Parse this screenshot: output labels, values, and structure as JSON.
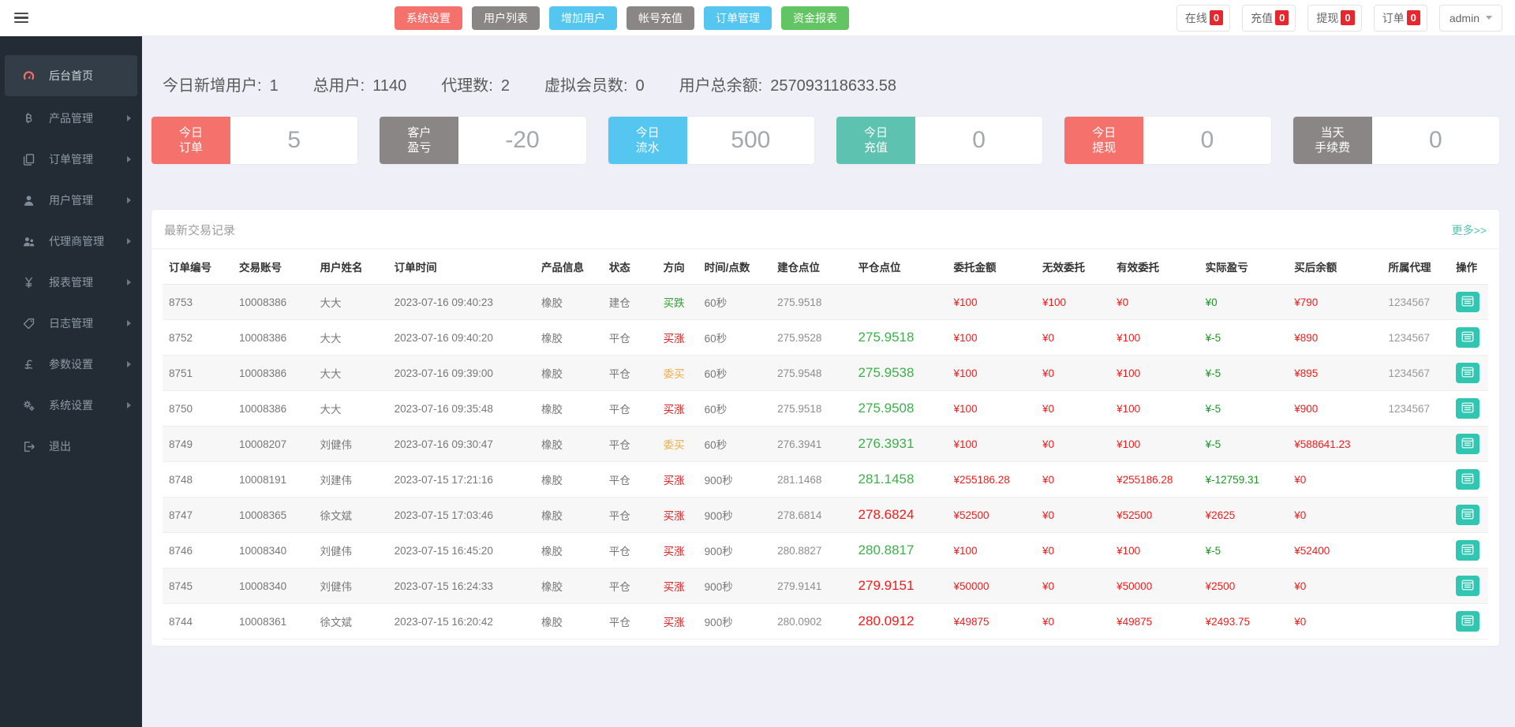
{
  "topbar": {
    "actions": [
      {
        "key": "system-settings",
        "label": "系统设置",
        "color": "red"
      },
      {
        "key": "user-list",
        "label": "用户列表",
        "color": "gray"
      },
      {
        "key": "add-user",
        "label": "增加用户",
        "color": "blue"
      },
      {
        "key": "account-recharge",
        "label": "帐号充值",
        "color": "gray"
      },
      {
        "key": "order-manage",
        "label": "订单管理",
        "color": "blue"
      },
      {
        "key": "fund-report",
        "label": "资金报表",
        "color": "green"
      }
    ],
    "status": [
      {
        "key": "online",
        "label": "在线",
        "count": "0"
      },
      {
        "key": "recharge",
        "label": "充值",
        "count": "0"
      },
      {
        "key": "withdraw",
        "label": "提现",
        "count": "0"
      },
      {
        "key": "orders",
        "label": "订单",
        "count": "0"
      }
    ],
    "user": {
      "name": "admin"
    }
  },
  "sidebar": {
    "items": [
      {
        "key": "home",
        "label": "后台首页",
        "icon": "dashboard-icon",
        "active": true,
        "expandable": false
      },
      {
        "key": "products",
        "label": "产品管理",
        "icon": "bitcoin-icon",
        "active": false,
        "expandable": true
      },
      {
        "key": "orders",
        "label": "订单管理",
        "icon": "orders-icon",
        "active": false,
        "expandable": true
      },
      {
        "key": "users",
        "label": "用户管理",
        "icon": "user-icon",
        "active": false,
        "expandable": true
      },
      {
        "key": "agents",
        "label": "代理商管理",
        "icon": "agents-icon",
        "active": false,
        "expandable": true
      },
      {
        "key": "reports",
        "label": "报表管理",
        "icon": "yen-icon",
        "active": false,
        "expandable": true
      },
      {
        "key": "logs",
        "label": "日志管理",
        "icon": "logs-icon",
        "active": false,
        "expandable": true
      },
      {
        "key": "params",
        "label": "参数设置",
        "icon": "pound-icon",
        "active": false,
        "expandable": true
      },
      {
        "key": "system",
        "label": "系统设置",
        "icon": "gears-icon",
        "active": false,
        "expandable": true
      },
      {
        "key": "logout",
        "label": "退出",
        "icon": "signout-icon",
        "active": false,
        "expandable": false
      }
    ]
  },
  "overview": {
    "stats": [
      {
        "label": "今日新增用户:",
        "value": "1"
      },
      {
        "label": "总用户:",
        "value": "1140"
      },
      {
        "label": "代理数:",
        "value": "2"
      },
      {
        "label": "虚拟会员数:",
        "value": "0"
      },
      {
        "label": "用户总余额:",
        "value": "257093118633.58"
      }
    ],
    "cards": [
      {
        "key": "today-orders",
        "line1": "今日",
        "line2": "订单",
        "value": "5",
        "color": "red"
      },
      {
        "key": "customer-pnl",
        "line1": "客户",
        "line2": "盈亏",
        "value": "-20",
        "color": "gray"
      },
      {
        "key": "today-flow",
        "line1": "今日",
        "line2": "流水",
        "value": "500",
        "color": "blue"
      },
      {
        "key": "today-recharge",
        "line1": "今日",
        "line2": "充值",
        "value": "0",
        "color": "teal"
      },
      {
        "key": "today-withdraw",
        "line1": "今日",
        "line2": "提现",
        "value": "0",
        "color": "red"
      },
      {
        "key": "today-fee",
        "line1": "当天",
        "line2": "手续费",
        "value": "0",
        "color": "gray"
      }
    ]
  },
  "panel": {
    "title": "最新交易记录",
    "more": "更多>>",
    "table": {
      "columns": [
        "订单编号",
        "交易账号",
        "用户姓名",
        "订单时间",
        "产品信息",
        "状态",
        "方向",
        "时间/点数",
        "建仓点位",
        "平仓点位",
        "委托金额",
        "无效委托",
        "有效委托",
        "实际盈亏",
        "买后余额",
        "所属代理",
        "操作"
      ],
      "rows": [
        {
          "id": "8753",
          "account": "10008386",
          "name": "大大",
          "time": "2023-07-16 09:40:23",
          "product": "橡胶",
          "status": "建仓",
          "direction": "买跌",
          "direction_color": "green",
          "period": "60秒",
          "open": "275.9518",
          "close": "",
          "close_color": "green",
          "amount": "¥100",
          "invalid": "¥100",
          "valid": "¥0",
          "profit": "¥0",
          "profit_color": "green",
          "balance": "¥790",
          "agent": "1234567"
        },
        {
          "id": "8752",
          "account": "10008386",
          "name": "大大",
          "time": "2023-07-16 09:40:20",
          "product": "橡胶",
          "status": "平仓",
          "direction": "买涨",
          "direction_color": "red",
          "period": "60秒",
          "open": "275.9528",
          "close": "275.9518",
          "close_color": "green",
          "amount": "¥100",
          "invalid": "¥0",
          "valid": "¥100",
          "profit": "¥-5",
          "profit_color": "green",
          "balance": "¥890",
          "agent": "1234567"
        },
        {
          "id": "8751",
          "account": "10008386",
          "name": "大大",
          "time": "2023-07-16 09:39:00",
          "product": "橡胶",
          "status": "平仓",
          "direction": "委买",
          "direction_color": "orange",
          "period": "60秒",
          "open": "275.9548",
          "close": "275.9538",
          "close_color": "green",
          "amount": "¥100",
          "invalid": "¥0",
          "valid": "¥100",
          "profit": "¥-5",
          "profit_color": "green",
          "balance": "¥895",
          "agent": "1234567"
        },
        {
          "id": "8750",
          "account": "10008386",
          "name": "大大",
          "time": "2023-07-16 09:35:48",
          "product": "橡胶",
          "status": "平仓",
          "direction": "买涨",
          "direction_color": "red",
          "period": "60秒",
          "open": "275.9518",
          "close": "275.9508",
          "close_color": "green",
          "amount": "¥100",
          "invalid": "¥0",
          "valid": "¥100",
          "profit": "¥-5",
          "profit_color": "green",
          "balance": "¥900",
          "agent": "1234567"
        },
        {
          "id": "8749",
          "account": "10008207",
          "name": "刘健伟",
          "time": "2023-07-16 09:30:47",
          "product": "橡胶",
          "status": "平仓",
          "direction": "委买",
          "direction_color": "orange",
          "period": "60秒",
          "open": "276.3941",
          "close": "276.3931",
          "close_color": "green",
          "amount": "¥100",
          "invalid": "¥0",
          "valid": "¥100",
          "profit": "¥-5",
          "profit_color": "green",
          "balance": "¥588641.23",
          "agent": ""
        },
        {
          "id": "8748",
          "account": "10008191",
          "name": "刘建伟",
          "time": "2023-07-15 17:21:16",
          "product": "橡胶",
          "status": "平仓",
          "direction": "买涨",
          "direction_color": "red",
          "period": "900秒",
          "open": "281.1468",
          "close": "281.1458",
          "close_color": "green",
          "amount": "¥255186.28",
          "invalid": "¥0",
          "valid": "¥255186.28",
          "profit": "¥-12759.31",
          "profit_color": "green",
          "balance": "¥0",
          "agent": ""
        },
        {
          "id": "8747",
          "account": "10008365",
          "name": "徐文斌",
          "time": "2023-07-15 17:03:46",
          "product": "橡胶",
          "status": "平仓",
          "direction": "买涨",
          "direction_color": "red",
          "period": "900秒",
          "open": "278.6814",
          "close": "278.6824",
          "close_color": "red",
          "amount": "¥52500",
          "invalid": "¥0",
          "valid": "¥52500",
          "profit": "¥2625",
          "profit_color": "red",
          "balance": "¥0",
          "agent": ""
        },
        {
          "id": "8746",
          "account": "10008340",
          "name": "刘健伟",
          "time": "2023-07-15 16:45:20",
          "product": "橡胶",
          "status": "平仓",
          "direction": "买涨",
          "direction_color": "red",
          "period": "900秒",
          "open": "280.8827",
          "close": "280.8817",
          "close_color": "green",
          "amount": "¥100",
          "invalid": "¥0",
          "valid": "¥100",
          "profit": "¥-5",
          "profit_color": "green",
          "balance": "¥52400",
          "agent": ""
        },
        {
          "id": "8745",
          "account": "10008340",
          "name": "刘健伟",
          "time": "2023-07-15 16:24:33",
          "product": "橡胶",
          "status": "平仓",
          "direction": "买涨",
          "direction_color": "red",
          "period": "900秒",
          "open": "279.9141",
          "close": "279.9151",
          "close_color": "red",
          "amount": "¥50000",
          "invalid": "¥0",
          "valid": "¥50000",
          "profit": "¥2500",
          "profit_color": "red",
          "balance": "¥0",
          "agent": ""
        },
        {
          "id": "8744",
          "account": "10008361",
          "name": "徐文斌",
          "time": "2023-07-15 16:20:42",
          "product": "橡胶",
          "status": "平仓",
          "direction": "买涨",
          "direction_color": "red",
          "period": "900秒",
          "open": "280.0902",
          "close": "280.0912",
          "close_color": "red",
          "amount": "¥49875",
          "invalid": "¥0",
          "valid": "¥49875",
          "profit": "¥2493.75",
          "profit_color": "red",
          "balance": "¥0",
          "agent": ""
        }
      ]
    }
  },
  "colors": {
    "accent_red": "#f4726b",
    "accent_gray": "#8a8685",
    "accent_blue": "#54c6f0",
    "accent_green": "#62c462",
    "accent_teal": "#5dc2af",
    "badge_red": "#e8262d",
    "link_teal": "#56c0ae",
    "action_teal": "#30c6b1",
    "text_red": "#f21b1b",
    "text_green": "#2fa32f",
    "text_orange": "#efad42"
  }
}
